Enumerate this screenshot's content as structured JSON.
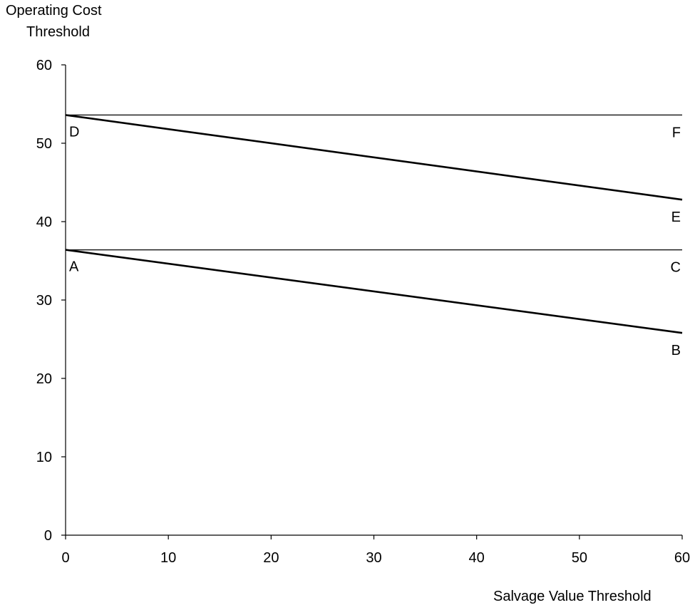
{
  "chart_data": {
    "type": "line",
    "ylabel": [
      "Operating Cost",
      "Threshold"
    ],
    "xlabel": "Salvage Value Threshold",
    "xlim": [
      0,
      60
    ],
    "ylim": [
      0,
      60
    ],
    "xticks": [
      0,
      10,
      20,
      30,
      40,
      50,
      60
    ],
    "yticks": [
      0,
      10,
      20,
      30,
      40,
      50,
      60
    ],
    "grid": false,
    "series": [
      {
        "x": [
          0,
          60
        ],
        "y": [
          53.6,
          53.6
        ],
        "start_label": "D",
        "end_label": "F",
        "style": "thin"
      },
      {
        "x": [
          0,
          60
        ],
        "y": [
          53.6,
          42.8
        ],
        "start_label": "",
        "end_label": "E",
        "style": "thick"
      },
      {
        "x": [
          0,
          60
        ],
        "y": [
          36.4,
          36.4
        ],
        "start_label": "A",
        "end_label": "C",
        "style": "thin"
      },
      {
        "x": [
          0,
          60
        ],
        "y": [
          36.4,
          25.8
        ],
        "start_label": "",
        "end_label": "B",
        "style": "thick"
      }
    ]
  }
}
